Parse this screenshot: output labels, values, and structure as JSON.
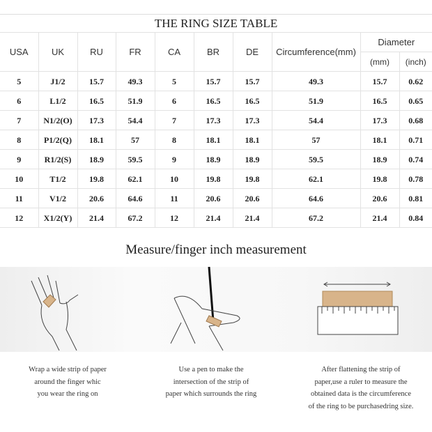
{
  "table": {
    "title": "THE RING SIZE TABLE",
    "headers": [
      "USA",
      "UK",
      "RU",
      "FR",
      "CA",
      "BR",
      "DE",
      "Circumference(mm)",
      "Diameter"
    ],
    "subheaders": [
      "(mm)",
      "(inch)"
    ],
    "rows": [
      [
        "5",
        "J1/2",
        "15.7",
        "49.3",
        "5",
        "15.7",
        "15.7",
        "49.3",
        "15.7",
        "0.62"
      ],
      [
        "6",
        "L1/2",
        "16.5",
        "51.9",
        "6",
        "16.5",
        "16.5",
        "51.9",
        "16.5",
        "0.65"
      ],
      [
        "7",
        "N1/2(O)",
        "17.3",
        "54.4",
        "7",
        "17.3",
        "17.3",
        "54.4",
        "17.3",
        "0.68"
      ],
      [
        "8",
        "P1/2(Q)",
        "18.1",
        "57",
        "8",
        "18.1",
        "18.1",
        "57",
        "18.1",
        "0.71"
      ],
      [
        "9",
        "R1/2(S)",
        "18.9",
        "59.5",
        "9",
        "18.9",
        "18.9",
        "59.5",
        "18.9",
        "0.74"
      ],
      [
        "10",
        "T1/2",
        "19.8",
        "62.1",
        "10",
        "19.8",
        "19.8",
        "62.1",
        "19.8",
        "0.78"
      ],
      [
        "11",
        "V1/2",
        "20.6",
        "64.6",
        "11",
        "20.6",
        "20.6",
        "64.6",
        "20.6",
        "0.81"
      ],
      [
        "12",
        "X1/2(Y)",
        "21.4",
        "67.2",
        "12",
        "21.4",
        "21.4",
        "67.2",
        "21.4",
        "0.84"
      ]
    ]
  },
  "measure": {
    "title": "Measure/finger inch measurement",
    "steps": [
      {
        "icon": "hand-wrap-icon",
        "lines": [
          "Wrap a wide strip of paper",
          "around the finger whic",
          "you wear the ring on"
        ]
      },
      {
        "icon": "pen-mark-icon",
        "lines": [
          "Use a pen to make the",
          "intersection of the strip of",
          "paper which surrounds the ring"
        ]
      },
      {
        "icon": "ruler-icon",
        "lines": [
          "After flattening the strip of",
          "paper,use a ruler to measure the",
          "obtained data is the circumference",
          "of the ring to be purchasedring size."
        ]
      }
    ]
  },
  "colors": {
    "paper": "#d8b48a",
    "line": "#e2e2e2"
  }
}
